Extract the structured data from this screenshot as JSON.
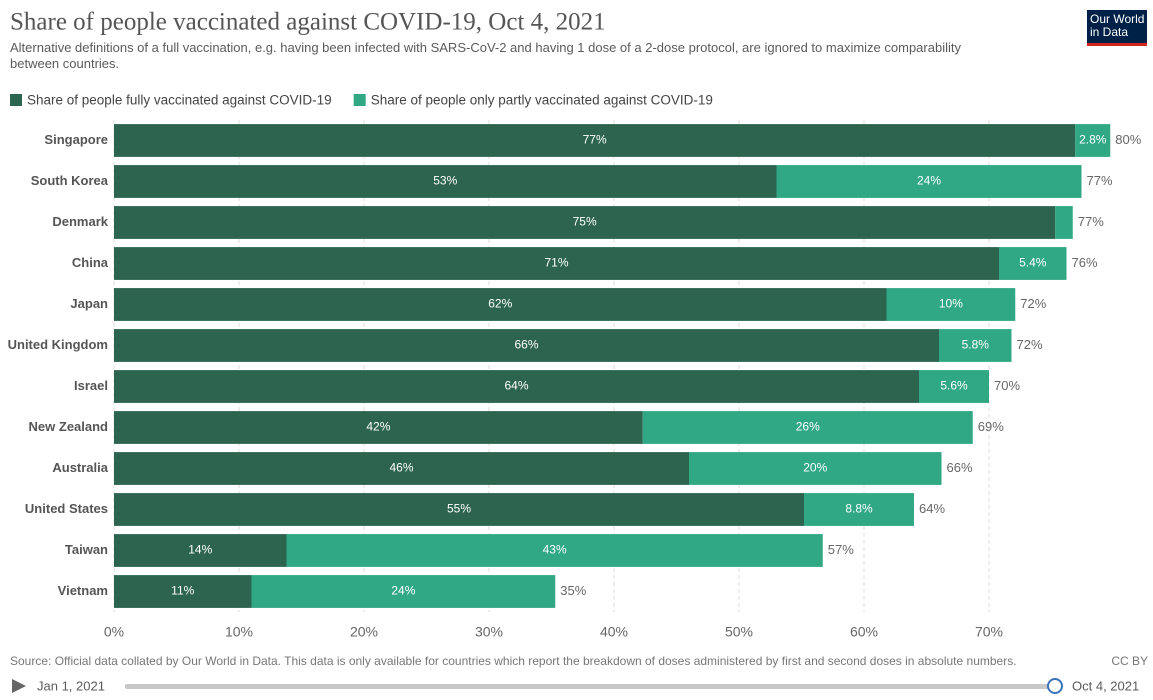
{
  "chart_data": {
    "type": "stacked-bar-horizontal",
    "title": "Share of people vaccinated against COVID-19, Oct 4, 2021",
    "subtitle": "Alternative definitions of a full vaccination, e.g. having been infected with SARS-CoV-2 and having 1 dose of a 2-dose protocol, are ignored to maximize comparability between countries.",
    "logo": "Our World in Data",
    "categories": [
      "Singapore",
      "South Korea",
      "Denmark",
      "China",
      "Japan",
      "United Kingdom",
      "Israel",
      "New Zealand",
      "Australia",
      "United States",
      "Taiwan",
      "Vietnam"
    ],
    "series": [
      {
        "name": "Share of people fully vaccinated against COVID-19",
        "color": "#2c6450",
        "values": [
          76.9,
          53.0,
          75.3,
          70.8,
          61.8,
          66.0,
          64.4,
          42.3,
          46.0,
          55.2,
          13.8,
          11.0
        ],
        "value_labels": [
          "77%",
          "53%",
          "75%",
          "71%",
          "62%",
          "66%",
          "64%",
          "42%",
          "46%",
          "55%",
          "14%",
          "11%"
        ]
      },
      {
        "name": "Share of people only partly vaccinated against COVID-19",
        "color": "#30a883",
        "values": [
          2.8,
          24.4,
          1.4,
          5.4,
          10.3,
          5.8,
          5.6,
          26.4,
          20.2,
          8.8,
          42.9,
          24.3
        ],
        "value_labels": [
          "2.8%",
          "24%",
          null,
          "5.4%",
          "10%",
          "5.8%",
          "5.6%",
          "26%",
          "20%",
          "8.8%",
          "43%",
          "24%"
        ]
      }
    ],
    "totals": {
      "values": [
        79.7,
        77.4,
        76.7,
        76.2,
        72.1,
        71.8,
        70.0,
        68.7,
        66.2,
        64.0,
        56.7,
        35.3
      ],
      "value_labels": [
        "80%",
        "77%",
        "77%",
        "76%",
        "72%",
        "72%",
        "70%",
        "69%",
        "66%",
        "64%",
        "57%",
        "35%"
      ]
    },
    "xlim": [
      0,
      80
    ],
    "xticks": [
      {
        "value": 0,
        "label": "0%"
      },
      {
        "value": 10,
        "label": "10%"
      },
      {
        "value": 20,
        "label": "20%"
      },
      {
        "value": 30,
        "label": "30%"
      },
      {
        "value": 40,
        "label": "40%"
      },
      {
        "value": 50,
        "label": "50%"
      },
      {
        "value": 60,
        "label": "60%"
      },
      {
        "value": 70,
        "label": "70%"
      }
    ],
    "grid": true,
    "source": "Source: Official data collated by Our World in Data. This data is only available for countries which report the breakdown of doses administered by first and second doses in absolute numbers.",
    "license": "CC BY",
    "timeline_start": "Jan 1, 2021",
    "timeline_end": "Oct 4, 2021"
  }
}
